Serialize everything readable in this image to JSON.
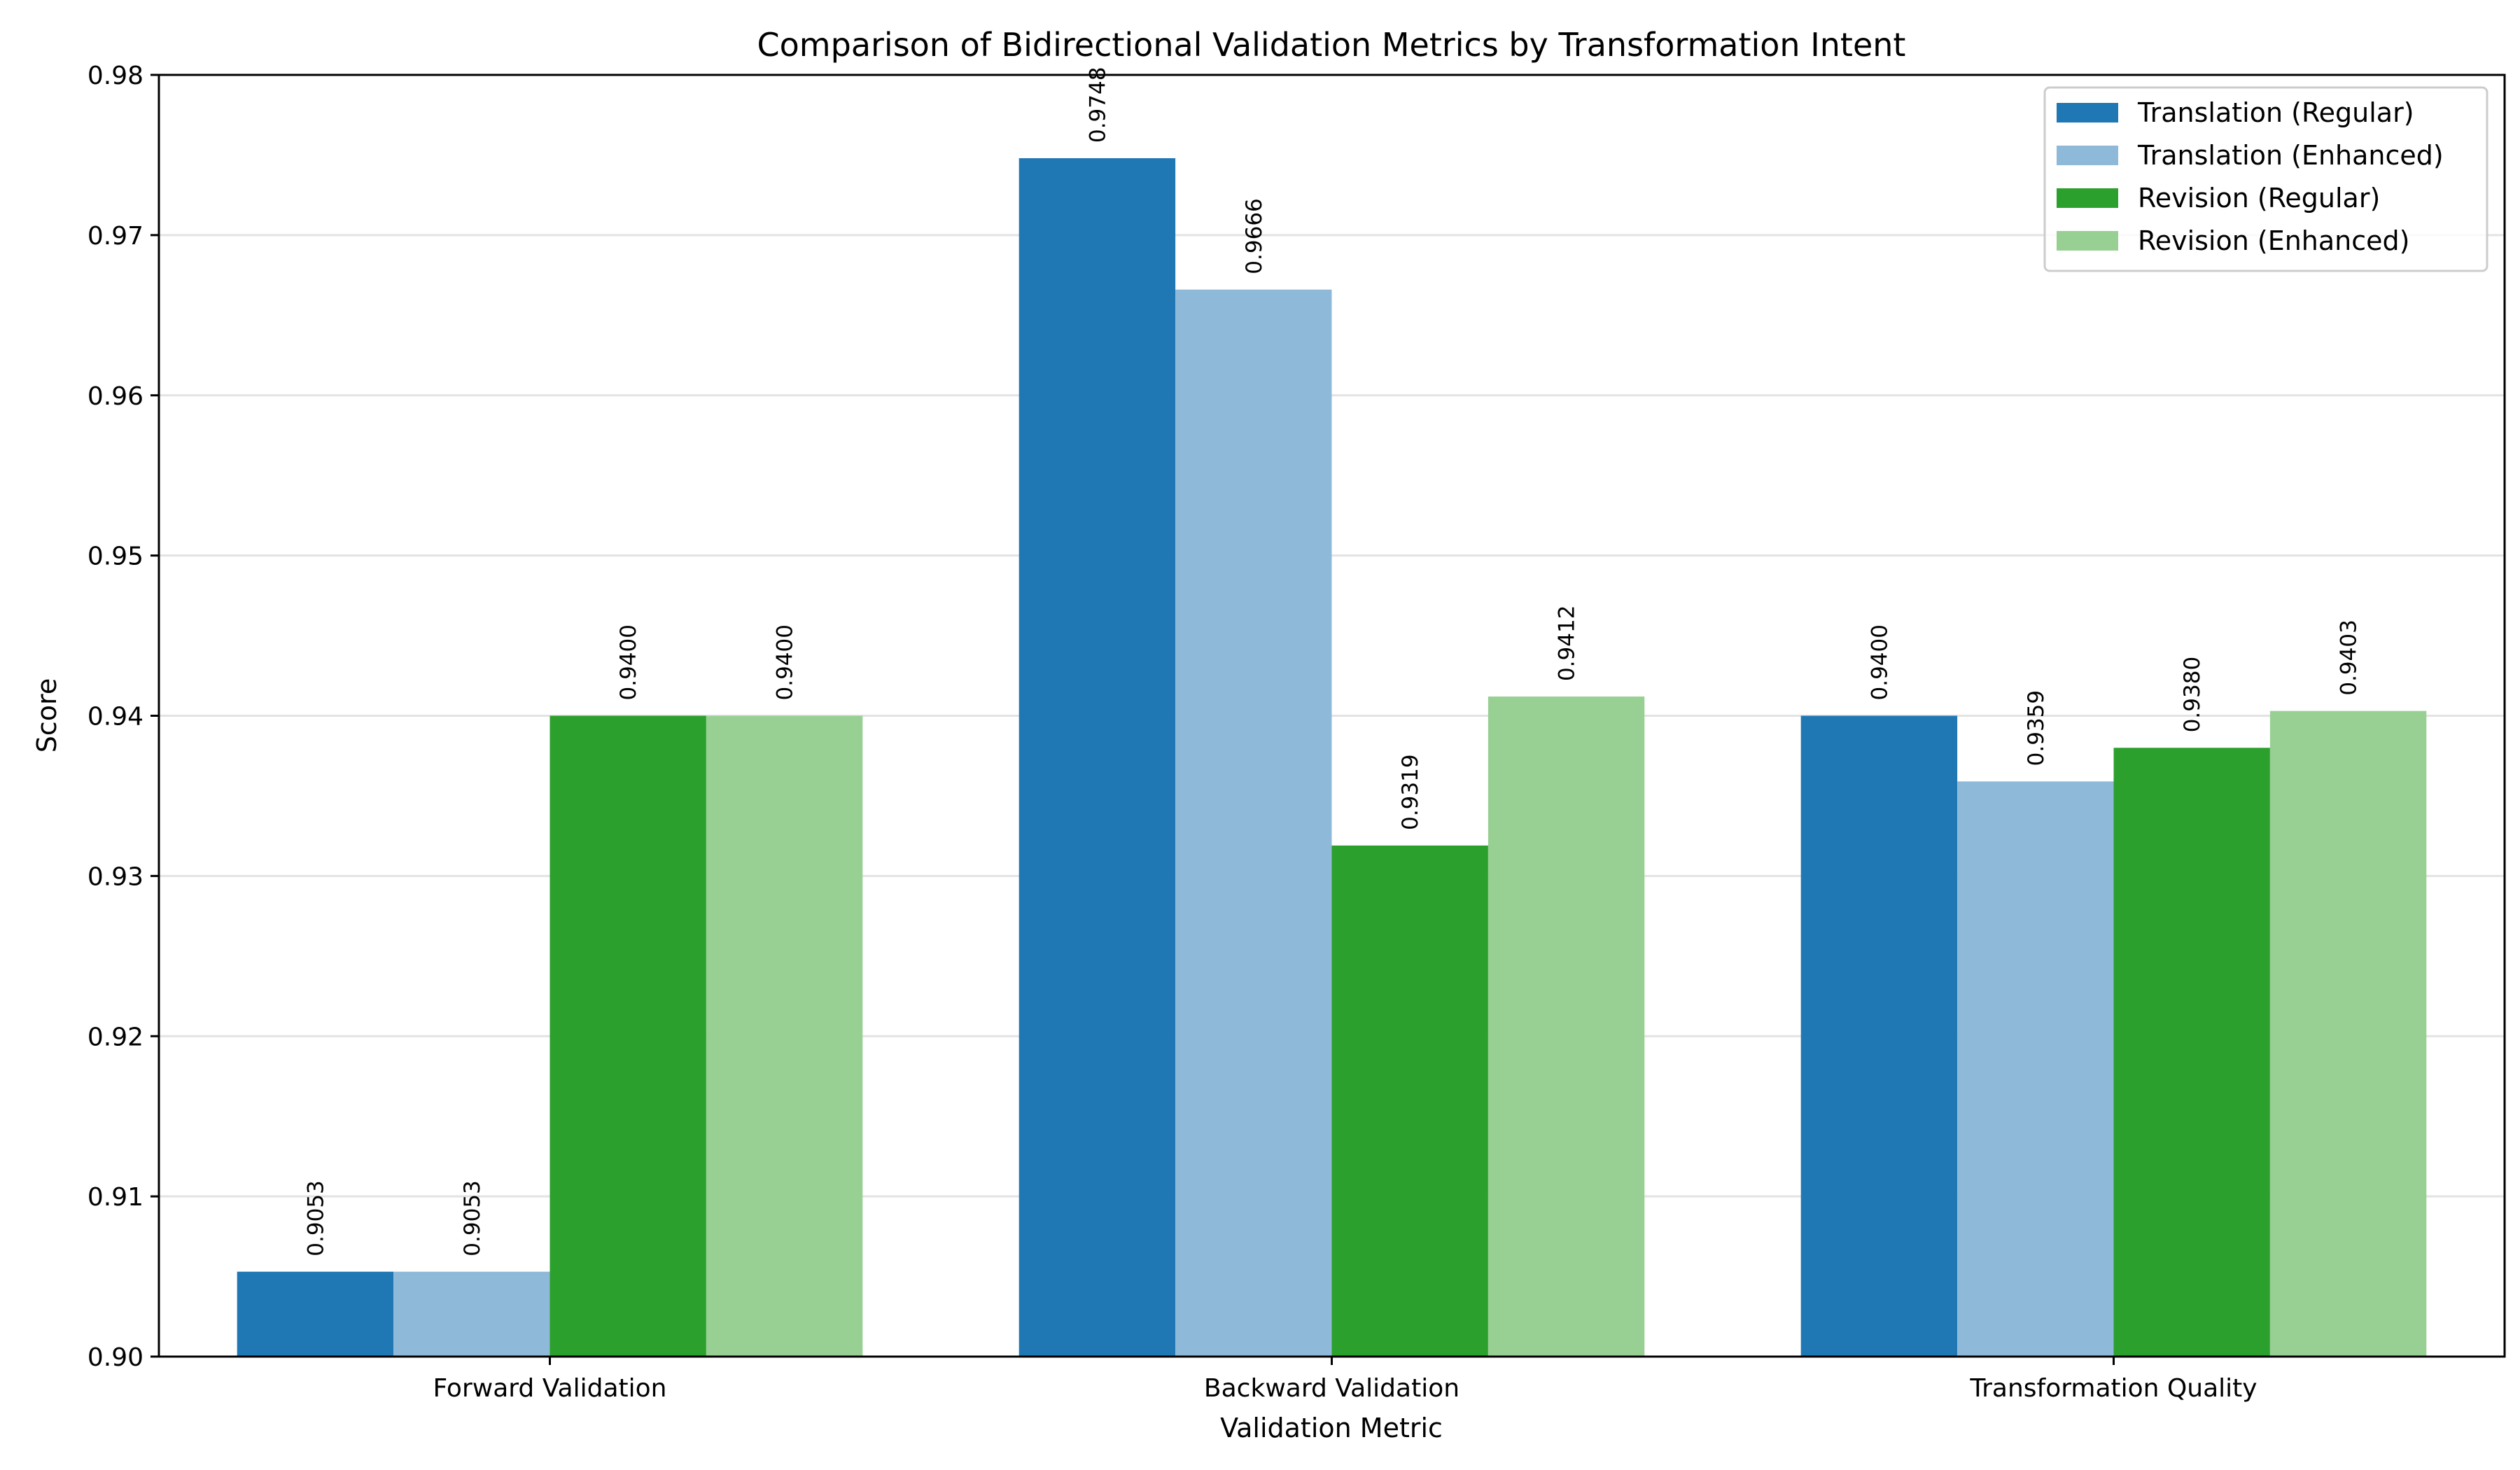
{
  "chart_data": {
    "type": "bar",
    "title": "Comparison of Bidirectional Validation Metrics by Transformation Intent",
    "xlabel": "Validation Metric",
    "ylabel": "Score",
    "ylim": [
      0.9,
      0.98
    ],
    "yticks": [
      "0.90",
      "0.91",
      "0.92",
      "0.93",
      "0.94",
      "0.95",
      "0.96",
      "0.97",
      "0.98"
    ],
    "grid": "horizontal",
    "legend_position": "top-right",
    "categories": [
      "Forward Validation",
      "Backward Validation",
      "Transformation Quality"
    ],
    "series": [
      {
        "name": "Translation (Regular)",
        "color": "#1f77b4",
        "values": [
          0.9053,
          0.9748,
          0.94
        ],
        "labels": [
          "0.9053",
          "0.9748",
          "0.9400"
        ]
      },
      {
        "name": "Translation (Enhanced)",
        "color": "#8fb9d9",
        "values": [
          0.9053,
          0.9666,
          0.9359
        ],
        "labels": [
          "0.9053",
          "0.9666",
          "0.9359"
        ]
      },
      {
        "name": "Revision (Regular)",
        "color": "#2ca02c",
        "values": [
          0.94,
          0.9319,
          0.938
        ],
        "labels": [
          "0.9400",
          "0.9319",
          "0.9380"
        ]
      },
      {
        "name": "Revision (Enhanced)",
        "color": "#98d094",
        "values": [
          0.94,
          0.9412,
          0.9403
        ],
        "labels": [
          "0.9400",
          "0.9412",
          "0.9403"
        ]
      }
    ]
  }
}
